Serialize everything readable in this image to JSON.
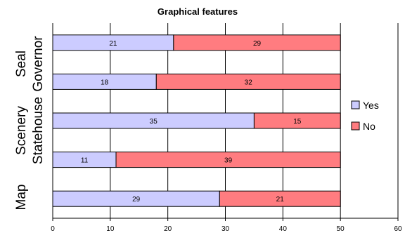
{
  "chart_data": {
    "type": "bar",
    "orientation": "horizontal",
    "stacked": true,
    "title": "Graphical features",
    "categories": [
      "Seal",
      "Governor",
      "Scenery",
      "Statehouse",
      "Map"
    ],
    "series": [
      {
        "name": "Yes",
        "values": [
          21,
          18,
          35,
          11,
          29
        ]
      },
      {
        "name": "No",
        "values": [
          29,
          32,
          15,
          39,
          21
        ]
      }
    ],
    "xlim": [
      0,
      60
    ],
    "xticks": [
      "0",
      "10",
      "20",
      "30",
      "40",
      "50",
      "60"
    ],
    "grid": true,
    "legend": "right",
    "colors": {
      "Yes": "#ccccff",
      "No": "#ff7c80"
    }
  }
}
